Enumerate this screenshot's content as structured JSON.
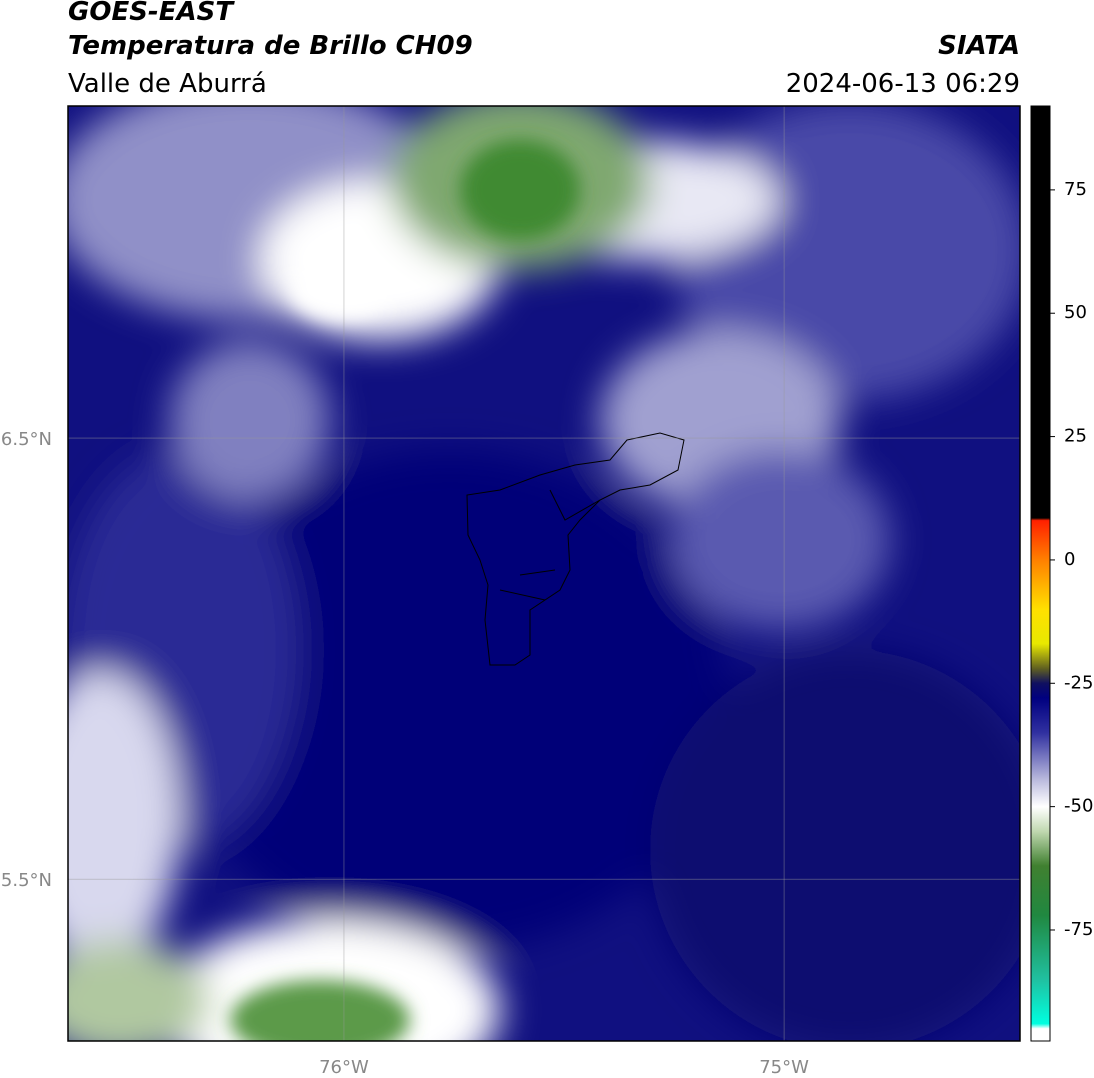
{
  "header": {
    "title": "GOES-EAST",
    "subtitle": "Temperatura de Brillo CH09",
    "source": "SIATA",
    "region": "Valle de Aburrá",
    "datetime": "2024-06-13 06:29"
  },
  "map": {
    "xlim": [
      -76.627,
      -74.464
    ],
    "ylim": [
      5.133,
      7.253
    ],
    "xticks": [
      {
        "value": -76,
        "label": "76°W"
      },
      {
        "value": -75,
        "label": "75°W"
      }
    ],
    "yticks": [
      {
        "value": 6.5,
        "label": "6.5°N"
      },
      {
        "value": 5.5,
        "label": "5.5°N"
      }
    ],
    "grid": true
  },
  "colorbar": {
    "lim": [
      -97.5,
      92
    ],
    "ticks": [
      75,
      50,
      25,
      0,
      -25,
      -50,
      -75
    ],
    "stops": [
      {
        "value": 92,
        "color": "#000000"
      },
      {
        "value": 8.5,
        "color": "#000000"
      },
      {
        "value": 8,
        "color": "#ff2000"
      },
      {
        "value": 0,
        "color": "#ff8000"
      },
      {
        "value": -10,
        "color": "#ffe000"
      },
      {
        "value": -17,
        "color": "#e8e800"
      },
      {
        "value": -22,
        "color": "#606020"
      },
      {
        "value": -25,
        "color": "#101060"
      },
      {
        "value": -28,
        "color": "#000080"
      },
      {
        "value": -35,
        "color": "#3030a0"
      },
      {
        "value": -45,
        "color": "#c0c0e0"
      },
      {
        "value": -50,
        "color": "#ffffff"
      },
      {
        "value": -55,
        "color": "#c0d8b0"
      },
      {
        "value": -62,
        "color": "#408030"
      },
      {
        "value": -72,
        "color": "#208840"
      },
      {
        "value": -85,
        "color": "#20c0a0"
      },
      {
        "value": -94,
        "color": "#00ffe0"
      },
      {
        "value": -95,
        "color": "#ffffff"
      },
      {
        "value": -97.5,
        "color": "#ffffff"
      }
    ]
  }
}
